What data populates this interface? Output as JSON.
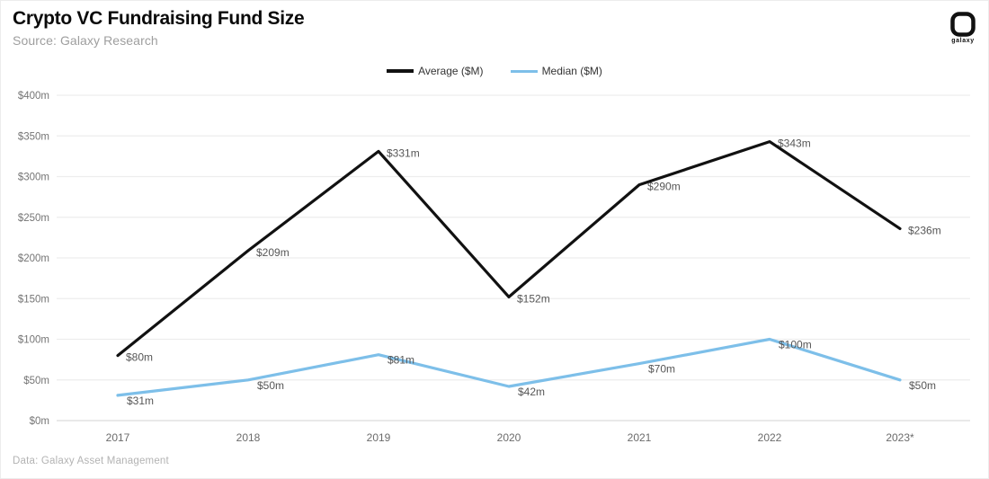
{
  "header": {
    "title": "Crypto VC Fundraising Fund Size",
    "subtitle": "Source: Galaxy Research"
  },
  "logo": {
    "brand": "galaxy"
  },
  "footer": {
    "credit": "Data: Galaxy Asset Management"
  },
  "chart_data": {
    "type": "line",
    "title": "Crypto VC Fundraising Fund Size",
    "categories": [
      "2017",
      "2018",
      "2019",
      "2020",
      "2021",
      "2022",
      "2023*"
    ],
    "series": [
      {
        "name": "Average ($M)",
        "color": "#111111",
        "values": [
          80,
          209,
          331,
          152,
          290,
          343,
          236
        ],
        "data_labels": [
          "$80m",
          "$209m",
          "$331m",
          "$152m",
          "$290m",
          "$343m",
          "$236m"
        ]
      },
      {
        "name": "Median ($M)",
        "color": "#7dbfe9",
        "values": [
          31,
          50,
          81,
          42,
          70,
          100,
          50
        ],
        "data_labels": [
          "$31m",
          "$50m",
          "$81m",
          "$42m",
          "$70m",
          "$100m",
          "$50m"
        ]
      }
    ],
    "ylim": [
      0,
      400
    ],
    "ytick_step": 50,
    "ytick_labels": [
      "$0m",
      "$50m",
      "$100m",
      "$150m",
      "$200m",
      "$250m",
      "$300m",
      "$350m",
      "$400m"
    ],
    "grid": true,
    "legend_position": "top-center"
  }
}
